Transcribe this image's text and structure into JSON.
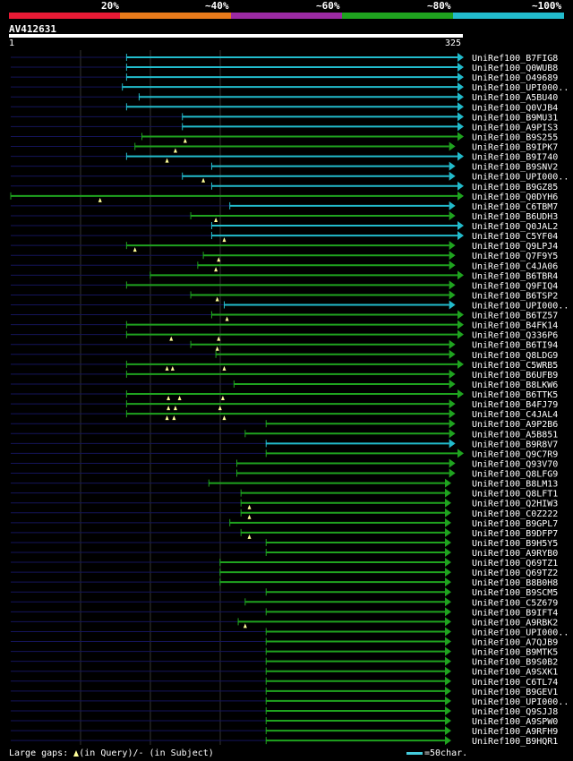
{
  "chart_data": {
    "type": "alignment-overview",
    "query": {
      "id": "AV412631",
      "start": 1,
      "end": 325
    },
    "identity_scale": {
      "labels": [
        "20%",
        "~40%",
        "~60%",
        "~80%",
        "~100%"
      ],
      "colors": [
        "#e81a35",
        "#e87a1a",
        "#9b2aa3",
        "#1fa31f",
        "#22bbcc"
      ]
    },
    "legend": {
      "gap_text_before": "Large gaps:",
      "in_query": "(in Query)/",
      "in_subject": "- (in Subject)",
      "scale_text": "=50char."
    },
    "hits": [
      {
        "name": "UniRef100_B7FIG8",
        "start": 84,
        "end": 325,
        "identity": "~100%",
        "marks": []
      },
      {
        "name": "UniRef100_Q0WUB8",
        "start": 84,
        "end": 325,
        "identity": "~100%",
        "marks": []
      },
      {
        "name": "UniRef100_O49689",
        "start": 84,
        "end": 325,
        "identity": "~100%",
        "marks": []
      },
      {
        "name": "UniRef100_UPI000..",
        "start": 81,
        "end": 325,
        "identity": "~100%",
        "marks": []
      },
      {
        "name": "UniRef100_A5BU40",
        "start": 93,
        "end": 325,
        "identity": "~100%",
        "marks": []
      },
      {
        "name": "UniRef100_Q0VJB4",
        "start": 84,
        "end": 325,
        "identity": "~100%",
        "marks": []
      },
      {
        "name": "UniRef100_B9MU31",
        "start": 124,
        "end": 325,
        "identity": "~100%",
        "marks": []
      },
      {
        "name": "UniRef100_A9PIS3",
        "start": 124,
        "end": 325,
        "identity": "~100%",
        "marks": []
      },
      {
        "name": "UniRef100_B9S255",
        "start": 95,
        "end": 325,
        "identity": "~80%",
        "marks": [
          126
        ]
      },
      {
        "name": "UniRef100_B9IPK7",
        "start": 90,
        "end": 319,
        "identity": "~80%",
        "marks": [
          119
        ]
      },
      {
        "name": "UniRef100_B9I740",
        "start": 84,
        "end": 325,
        "identity": "~100%",
        "marks": [
          113
        ]
      },
      {
        "name": "UniRef100_B9SNV2",
        "start": 145,
        "end": 319,
        "identity": "~100%",
        "marks": []
      },
      {
        "name": "UniRef100_UPI000..",
        "start": 124,
        "end": 319,
        "identity": "~100%",
        "marks": [
          139
        ]
      },
      {
        "name": "UniRef100_B9GZ85",
        "start": 145,
        "end": 325,
        "identity": "~100%",
        "marks": []
      },
      {
        "name": "UniRef100_Q0DYH6",
        "start": 1,
        "end": 325,
        "identity": "~80%",
        "marks": [
          65
        ]
      },
      {
        "name": "UniRef100_C6TBM7",
        "start": 158,
        "end": 319,
        "identity": "~100%",
        "marks": []
      },
      {
        "name": "UniRef100_B6UDH3",
        "start": 130,
        "end": 319,
        "identity": "~80%",
        "marks": [
          148
        ]
      },
      {
        "name": "UniRef100_Q0JAL2",
        "start": 145,
        "end": 325,
        "identity": "~100%",
        "marks": []
      },
      {
        "name": "UniRef100_C5YF04",
        "start": 145,
        "end": 325,
        "identity": "~100%",
        "marks": [
          154
        ]
      },
      {
        "name": "UniRef100_Q9LPJ4",
        "start": 84,
        "end": 319,
        "identity": "~80%",
        "marks": [
          90
        ]
      },
      {
        "name": "UniRef100_Q7F9Y5",
        "start": 139,
        "end": 319,
        "identity": "~80%",
        "marks": [
          150
        ]
      },
      {
        "name": "UniRef100_C4JA06",
        "start": 135,
        "end": 319,
        "identity": "~80%",
        "marks": [
          148
        ]
      },
      {
        "name": "UniRef100_B6TBR4",
        "start": 101,
        "end": 325,
        "identity": "~80%",
        "marks": []
      },
      {
        "name": "UniRef100_Q9FIQ4",
        "start": 84,
        "end": 319,
        "identity": "~80%",
        "marks": []
      },
      {
        "name": "UniRef100_B6TSP2",
        "start": 130,
        "end": 319,
        "identity": "~80%",
        "marks": [
          149
        ]
      },
      {
        "name": "UniRef100_UPI000..",
        "start": 154,
        "end": 319,
        "identity": "~100%",
        "marks": []
      },
      {
        "name": "UniRef100_B6TZ57",
        "start": 145,
        "end": 325,
        "identity": "~80%",
        "marks": [
          156
        ]
      },
      {
        "name": "UniRef100_B4FK14",
        "start": 84,
        "end": 325,
        "identity": "~80%",
        "marks": []
      },
      {
        "name": "UniRef100_Q336P6",
        "start": 84,
        "end": 325,
        "identity": "~80%",
        "marks": [
          116,
          150
        ]
      },
      {
        "name": "UniRef100_B6TI94",
        "start": 130,
        "end": 319,
        "identity": "~80%",
        "marks": [
          149
        ]
      },
      {
        "name": "UniRef100_Q8LDG9",
        "start": 148,
        "end": 319,
        "identity": "~80%",
        "marks": []
      },
      {
        "name": "UniRef100_C5WRB5",
        "start": 84,
        "end": 325,
        "identity": "~80%",
        "marks": [
          113,
          117,
          154
        ]
      },
      {
        "name": "UniRef100_B6UFB9",
        "start": 84,
        "end": 319,
        "identity": "~80%",
        "marks": []
      },
      {
        "name": "UniRef100_B8LKW6",
        "start": 161,
        "end": 319,
        "identity": "~80%",
        "marks": []
      },
      {
        "name": "UniRef100_B6TTK5",
        "start": 84,
        "end": 325,
        "identity": "~80%",
        "marks": [
          114,
          122,
          153
        ]
      },
      {
        "name": "UniRef100_B4FJ79",
        "start": 84,
        "end": 319,
        "identity": "~80%",
        "marks": [
          114,
          119,
          151
        ]
      },
      {
        "name": "UniRef100_C4JAL4",
        "start": 84,
        "end": 319,
        "identity": "~80%",
        "marks": [
          113,
          118,
          154
        ]
      },
      {
        "name": "UniRef100_A9P2B6",
        "start": 184,
        "end": 319,
        "identity": "~80%",
        "marks": []
      },
      {
        "name": "UniRef100_A5B851",
        "start": 169,
        "end": 319,
        "identity": "~80%",
        "marks": []
      },
      {
        "name": "UniRef100_B9R8V7",
        "start": 184,
        "end": 319,
        "identity": "~100%",
        "marks": []
      },
      {
        "name": "UniRef100_Q9C7R9",
        "start": 184,
        "end": 325,
        "identity": "~80%",
        "marks": []
      },
      {
        "name": "UniRef100_Q93V70",
        "start": 163,
        "end": 319,
        "identity": "~80%",
        "marks": []
      },
      {
        "name": "UniRef100_Q8LFG9",
        "start": 163,
        "end": 319,
        "identity": "~80%",
        "marks": []
      },
      {
        "name": "UniRef100_B8LM13",
        "start": 143,
        "end": 316,
        "identity": "~80%",
        "marks": []
      },
      {
        "name": "UniRef100_Q8LFT1",
        "start": 166,
        "end": 316,
        "identity": "~80%",
        "marks": []
      },
      {
        "name": "UniRef100_Q2HIW3",
        "start": 166,
        "end": 316,
        "identity": "~80%",
        "marks": [
          172
        ]
      },
      {
        "name": "UniRef100_C0Z222",
        "start": 166,
        "end": 316,
        "identity": "~80%",
        "marks": [
          172
        ]
      },
      {
        "name": "UniRef100_B9GPL7",
        "start": 158,
        "end": 316,
        "identity": "~80%",
        "marks": []
      },
      {
        "name": "UniRef100_B9DFP7",
        "start": 166,
        "end": 316,
        "identity": "~80%",
        "marks": [
          172
        ]
      },
      {
        "name": "UniRef100_B9H5Y5",
        "start": 184,
        "end": 316,
        "identity": "~80%",
        "marks": []
      },
      {
        "name": "UniRef100_A9RYB0",
        "start": 184,
        "end": 316,
        "identity": "~80%",
        "marks": []
      },
      {
        "name": "UniRef100_Q69TZ1",
        "start": 151,
        "end": 316,
        "identity": "~80%",
        "marks": []
      },
      {
        "name": "UniRef100_Q69TZ2",
        "start": 151,
        "end": 316,
        "identity": "~80%",
        "marks": []
      },
      {
        "name": "UniRef100_B8B0H8",
        "start": 151,
        "end": 316,
        "identity": "~80%",
        "marks": []
      },
      {
        "name": "UniRef100_B9SCM5",
        "start": 184,
        "end": 316,
        "identity": "~80%",
        "marks": []
      },
      {
        "name": "UniRef100_C5Z679",
        "start": 169,
        "end": 316,
        "identity": "~80%",
        "marks": []
      },
      {
        "name": "UniRef100_B9IFT4",
        "start": 184,
        "end": 316,
        "identity": "~80%",
        "marks": []
      },
      {
        "name": "UniRef100_A9RBK2",
        "start": 164,
        "end": 316,
        "identity": "~80%",
        "marks": [
          169
        ]
      },
      {
        "name": "UniRef100_UPI000..",
        "start": 184,
        "end": 316,
        "identity": "~80%",
        "marks": []
      },
      {
        "name": "UniRef100_A7QJB9",
        "start": 184,
        "end": 316,
        "identity": "~80%",
        "marks": []
      },
      {
        "name": "UniRef100_B9MTK5",
        "start": 184,
        "end": 316,
        "identity": "~80%",
        "marks": []
      },
      {
        "name": "UniRef100_B9S0B2",
        "start": 184,
        "end": 316,
        "identity": "~80%",
        "marks": []
      },
      {
        "name": "UniRef100_A9SXK1",
        "start": 184,
        "end": 316,
        "identity": "~80%",
        "marks": []
      },
      {
        "name": "UniRef100_C6TL74",
        "start": 184,
        "end": 316,
        "identity": "~80%",
        "marks": []
      },
      {
        "name": "UniRef100_B9GEV1",
        "start": 184,
        "end": 316,
        "identity": "~80%",
        "marks": []
      },
      {
        "name": "UniRef100_UPI000..",
        "start": 184,
        "end": 316,
        "identity": "~80%",
        "marks": []
      },
      {
        "name": "UniRef100_Q9SJJ8",
        "start": 184,
        "end": 316,
        "identity": "~80%",
        "marks": []
      },
      {
        "name": "UniRef100_A9SPW0",
        "start": 184,
        "end": 316,
        "identity": "~80%",
        "marks": []
      },
      {
        "name": "UniRef100_A9RFH9",
        "start": 184,
        "end": 316,
        "identity": "~80%",
        "marks": []
      },
      {
        "name": "UniRef100_B9HQR1",
        "start": 184,
        "end": 316,
        "identity": "~80%",
        "marks": []
      }
    ]
  }
}
